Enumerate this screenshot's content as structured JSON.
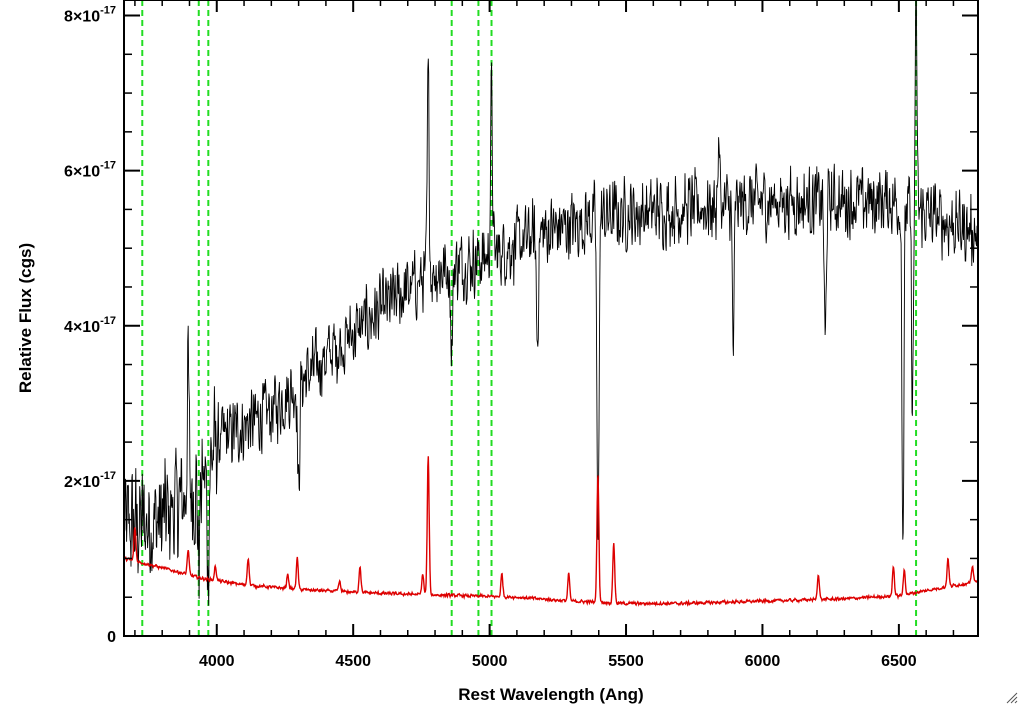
{
  "chart_data": {
    "type": "line",
    "title": "",
    "xlabel": "Rest Wavelength (Ang)",
    "ylabel": "Relative Flux (cgs)",
    "xlim": [
      3660,
      6790
    ],
    "ylim": [
      0,
      8.2e-17
    ],
    "x_ticks": [
      {
        "value": 4000,
        "label": "4000"
      },
      {
        "value": 4500,
        "label": "4500"
      },
      {
        "value": 5000,
        "label": "5000"
      },
      {
        "value": 5500,
        "label": "5500"
      },
      {
        "value": 6000,
        "label": "6000"
      },
      {
        "value": 6500,
        "label": "6500"
      }
    ],
    "y_ticks": [
      {
        "value": 0,
        "label": "0",
        "exponent": ""
      },
      {
        "value": 2e-17,
        "label": "2×10",
        "exponent": "-17"
      },
      {
        "value": 4e-17,
        "label": "4×10",
        "exponent": "-17"
      },
      {
        "value": 6e-17,
        "label": "6×10",
        "exponent": "-17"
      },
      {
        "value": 8e-17,
        "label": "8×10",
        "exponent": "-17"
      }
    ],
    "grid": false,
    "vertical_lines": {
      "color": "#22dd22",
      "style": "dashed",
      "x": [
        3727,
        3934,
        3969,
        4861,
        4959,
        5007,
        6563
      ]
    },
    "series": [
      {
        "color": "#000000",
        "continuum": [
          [
            3660,
            1.4e-17
          ],
          [
            3800,
            1.5e-17
          ],
          [
            3950,
            2e-17
          ],
          [
            4000,
            2.5e-17
          ],
          [
            4200,
            2.9e-17
          ],
          [
            4400,
            3.6e-17
          ],
          [
            4600,
            4.2e-17
          ],
          [
            4800,
            4.7e-17
          ],
          [
            5000,
            4.9e-17
          ],
          [
            5200,
            5.2e-17
          ],
          [
            5400,
            5.4e-17
          ],
          [
            5700,
            5.5e-17
          ],
          [
            6000,
            5.6e-17
          ],
          [
            6300,
            5.6e-17
          ],
          [
            6480,
            5.6e-17
          ],
          [
            6700,
            5.3e-17
          ],
          [
            6790,
            5.2e-17
          ]
        ],
        "features": [
          {
            "x": 3895,
            "y": 3.4e-17
          },
          {
            "x": 3934,
            "y": 1e-17
          },
          {
            "x": 3968,
            "y": 9e-18
          },
          {
            "x": 4300,
            "y": 1.8e-17
          },
          {
            "x": 4775,
            "y": 7.2e-17
          },
          {
            "x": 4861,
            "y": 3.6e-17
          },
          {
            "x": 5007,
            "y": 7e-17
          },
          {
            "x": 5175,
            "y": 3.8e-17
          },
          {
            "x": 5397,
            "y": 1e-17
          },
          {
            "x": 5840,
            "y": 6.3e-17
          },
          {
            "x": 5893,
            "y": 3.7e-17
          },
          {
            "x": 6230,
            "y": 3.7e-17
          },
          {
            "x": 6515,
            "y": 1.3e-17
          },
          {
            "x": 6550,
            "y": 3e-17
          },
          {
            "x": 6563,
            "y": 8e-17
          }
        ]
      },
      {
        "color": "#dd0000",
        "continuum": [
          [
            3660,
            1e-17
          ],
          [
            3800,
            8.8e-18
          ],
          [
            3950,
            7.4e-18
          ],
          [
            4100,
            6.6e-18
          ],
          [
            4300,
            6e-18
          ],
          [
            4600,
            5.5e-18
          ],
          [
            4900,
            5.2e-18
          ],
          [
            5100,
            5e-18
          ],
          [
            5300,
            4.5e-18
          ],
          [
            5500,
            4.2e-18
          ],
          [
            5700,
            4.2e-18
          ],
          [
            6000,
            4.5e-18
          ],
          [
            6300,
            4.8e-18
          ],
          [
            6500,
            5.2e-18
          ],
          [
            6700,
            6.5e-18
          ],
          [
            6790,
            7e-18
          ]
        ],
        "features": [
          {
            "x": 3700,
            "y": 1.4e-17
          },
          {
            "x": 3895,
            "y": 1.1e-17
          },
          {
            "x": 3995,
            "y": 9e-18
          },
          {
            "x": 4115,
            "y": 1e-17
          },
          {
            "x": 4260,
            "y": 8e-18
          },
          {
            "x": 4295,
            "y": 1e-17
          },
          {
            "x": 4450,
            "y": 7e-18
          },
          {
            "x": 4525,
            "y": 9e-18
          },
          {
            "x": 4755,
            "y": 8e-18
          },
          {
            "x": 4775,
            "y": 2.3e-17
          },
          {
            "x": 5045,
            "y": 8e-18
          },
          {
            "x": 5290,
            "y": 8e-18
          },
          {
            "x": 5397,
            "y": 2.1e-17
          },
          {
            "x": 5455,
            "y": 1.2e-17
          },
          {
            "x": 6205,
            "y": 8e-18
          },
          {
            "x": 6480,
            "y": 9e-18
          },
          {
            "x": 6520,
            "y": 8.5e-18
          },
          {
            "x": 6680,
            "y": 1e-17
          },
          {
            "x": 6770,
            "y": 9e-18
          }
        ]
      }
    ]
  }
}
